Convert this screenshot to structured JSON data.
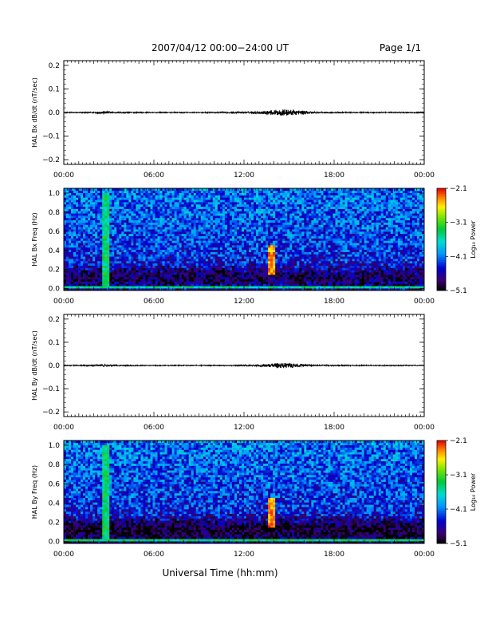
{
  "header": {
    "date_range": "2007/04/12  00:00−24:00 UT",
    "page": "Page 1/1"
  },
  "x_axis": {
    "label": "Universal Time (hh:mm)",
    "tick_labels": [
      "00:00",
      "06:00",
      "12:00",
      "18:00",
      "00:00"
    ],
    "range_hours": [
      0,
      24
    ]
  },
  "colors": {
    "trace": "#000000",
    "frame": "#000000",
    "background": "#ffffff"
  },
  "chart_data": [
    {
      "type": "line",
      "ylabel": "HAL Bx dB/dt (nT/sec)",
      "ylim": [
        -0.22,
        0.22
      ],
      "y_ticks": [
        0.2,
        0.1,
        0.0,
        -0.1,
        -0.2
      ],
      "y_tick_labels": [
        "0.2",
        "0.1",
        "0.0",
        "−0.1",
        "−0.2"
      ],
      "x_unit": "hours UT",
      "series": [
        {
          "x": [
            0,
            1,
            2,
            2.7,
            3.0,
            3.5,
            5,
            7,
            9,
            11,
            12.5,
            13.5,
            14.2,
            14.8,
            15.5,
            16.2,
            17,
            19,
            21,
            23,
            24
          ],
          "amplitude": [
            0.002,
            0.002,
            0.003,
            0.006,
            0.004,
            0.003,
            0.002,
            0.002,
            0.002,
            0.003,
            0.004,
            0.008,
            0.012,
            0.014,
            0.01,
            0.006,
            0.003,
            0.002,
            0.002,
            0.002,
            0.002
          ]
        }
      ]
    },
    {
      "type": "heatmap",
      "ylabel": "HAL Bx Freq (Hz)",
      "ylim": [
        -0.02,
        1.05
      ],
      "y_ticks": [
        0.0,
        0.2,
        0.4,
        0.6,
        0.8,
        1.0
      ],
      "y_tick_labels": [
        "0.0",
        "0.2",
        "0.4",
        "0.6",
        "0.8",
        "1.0"
      ],
      "colorbar": {
        "label": "Log₁₀ Power",
        "ticks": [
          "−2.1",
          "−3.1",
          "−4.1",
          "−5.1"
        ],
        "range": [
          -5.1,
          -2.1
        ]
      },
      "features": [
        {
          "t_start": 2.6,
          "t_end": 3.0,
          "f_low": 0.0,
          "f_high": 1.0,
          "level": -3.4
        },
        {
          "t_start": 13.6,
          "t_end": 14.0,
          "f_low": 0.15,
          "f_high": 0.45,
          "level": -2.4
        },
        {
          "t_start": 0.0,
          "t_end": 24.0,
          "f_low": 0.0,
          "f_high": 0.03,
          "level": -3.5
        }
      ]
    },
    {
      "type": "line",
      "ylabel": "HAL By dB/dt (nT/sec)",
      "ylim": [
        -0.22,
        0.22
      ],
      "y_ticks": [
        0.2,
        0.1,
        0.0,
        -0.1,
        -0.2
      ],
      "y_tick_labels": [
        "0.2",
        "0.1",
        "0.0",
        "−0.1",
        "−0.2"
      ],
      "x_unit": "hours UT",
      "series": [
        {
          "x": [
            0,
            1,
            2,
            2.7,
            3.0,
            3.5,
            5,
            7,
            9,
            11,
            12.5,
            13.5,
            14.2,
            14.8,
            15.5,
            16.2,
            17,
            19,
            21,
            23,
            24
          ],
          "amplitude": [
            0.002,
            0.002,
            0.003,
            0.005,
            0.004,
            0.003,
            0.002,
            0.002,
            0.002,
            0.002,
            0.003,
            0.006,
            0.01,
            0.011,
            0.008,
            0.005,
            0.003,
            0.002,
            0.002,
            0.002,
            0.002
          ]
        }
      ]
    },
    {
      "type": "heatmap",
      "ylabel": "HAL By Freq (Hz)",
      "ylim": [
        -0.02,
        1.05
      ],
      "y_ticks": [
        0.0,
        0.2,
        0.4,
        0.6,
        0.8,
        1.0
      ],
      "y_tick_labels": [
        "0.0",
        "0.2",
        "0.4",
        "0.6",
        "0.8",
        "1.0"
      ],
      "colorbar": {
        "label": "Log₁₀ Power",
        "ticks": [
          "−2.1",
          "−3.1",
          "−4.1",
          "−5.1"
        ],
        "range": [
          -5.1,
          -2.1
        ]
      },
      "features": [
        {
          "t_start": 2.6,
          "t_end": 3.0,
          "f_low": 0.0,
          "f_high": 1.0,
          "level": -3.4
        },
        {
          "t_start": 13.6,
          "t_end": 14.0,
          "f_low": 0.15,
          "f_high": 0.45,
          "level": -2.4
        },
        {
          "t_start": 0.0,
          "t_end": 24.0,
          "f_low": 0.0,
          "f_high": 0.03,
          "level": -3.4
        }
      ]
    }
  ]
}
